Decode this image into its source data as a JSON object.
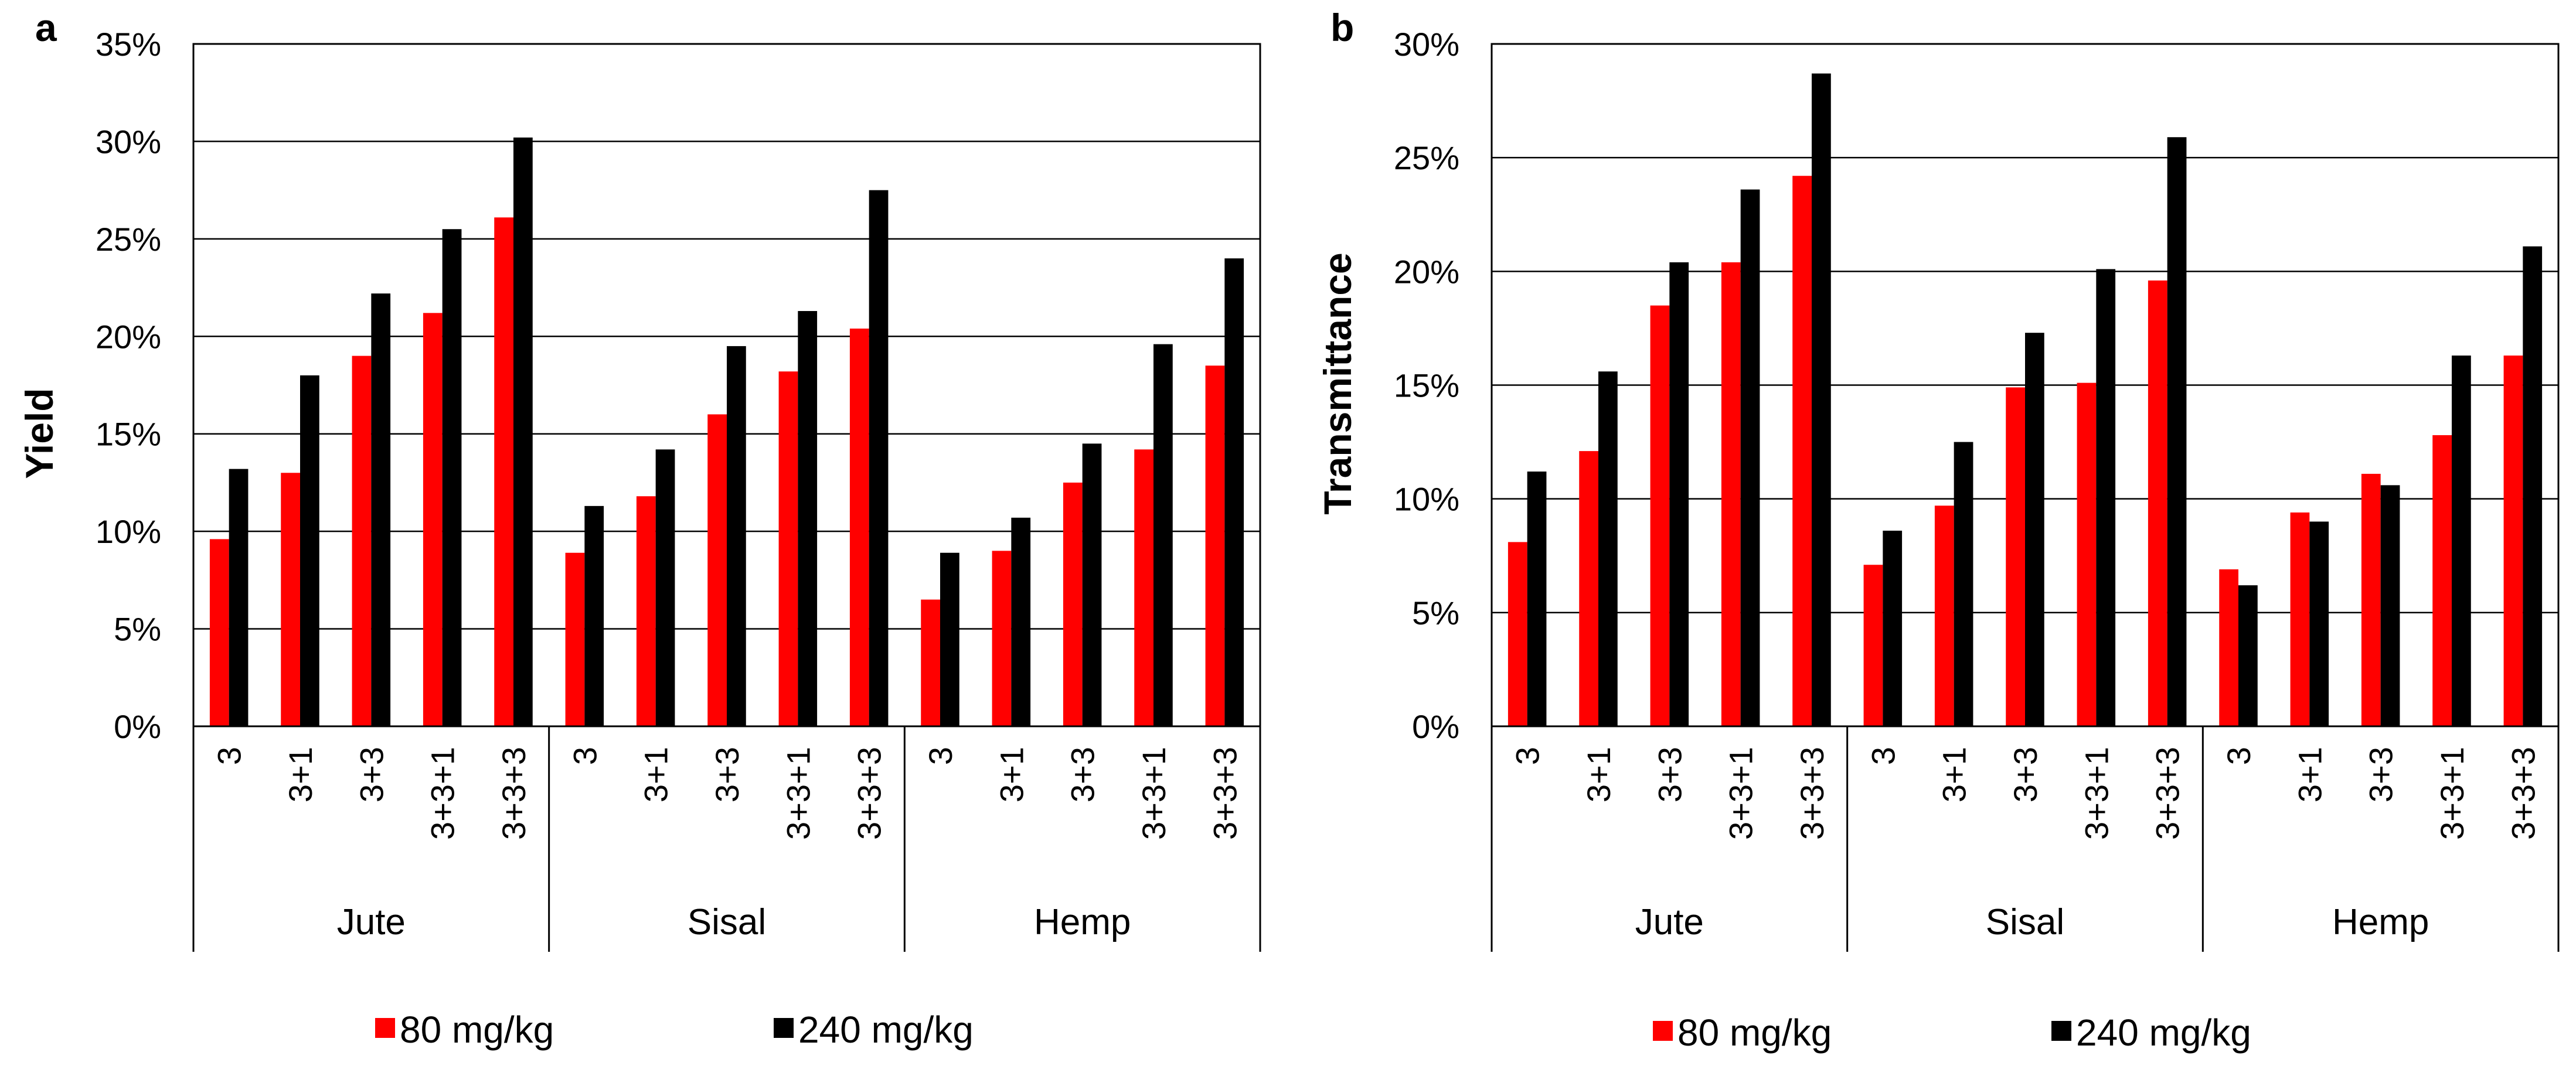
{
  "chart_data": [
    {
      "type": "bar",
      "panel_label": "a",
      "ylabel": "Yield",
      "xlabel": "",
      "ylim": [
        0,
        35
      ],
      "yticks": [
        "0%",
        "5%",
        "10%",
        "15%",
        "20%",
        "25%",
        "30%",
        "35%"
      ],
      "groups": [
        "Jute",
        "Sisal",
        "Hemp"
      ],
      "categories": [
        "3",
        "3+1",
        "3+3",
        "3+3+1",
        "3+3+3"
      ],
      "grid": "horizontal",
      "legend": "bottom",
      "series": [
        {
          "name": "80 mg/kg",
          "color": "#ff0000",
          "values": [
            [
              9.6,
              13.0,
              19.0,
              21.2,
              26.1
            ],
            [
              8.9,
              11.8,
              16.0,
              18.2,
              20.4
            ],
            [
              6.5,
              9.0,
              12.5,
              14.2,
              18.5
            ]
          ]
        },
        {
          "name": "240 mg/kg",
          "color": "#000000",
          "values": [
            [
              13.2,
              18.0,
              22.2,
              25.5,
              30.2
            ],
            [
              11.3,
              14.2,
              19.5,
              21.3,
              27.5
            ],
            [
              8.9,
              10.7,
              14.5,
              19.6,
              24.0
            ]
          ]
        }
      ]
    },
    {
      "type": "bar",
      "panel_label": "b",
      "ylabel": "Transmittance",
      "xlabel": "",
      "ylim": [
        0,
        30
      ],
      "yticks": [
        "0%",
        "5%",
        "10%",
        "15%",
        "20%",
        "25%",
        "30%"
      ],
      "groups": [
        "Jute",
        "Sisal",
        "Hemp"
      ],
      "categories": [
        "3",
        "3+1",
        "3+3",
        "3+3+1",
        "3+3+3"
      ],
      "grid": "horizontal",
      "legend": "bottom",
      "series": [
        {
          "name": "80 mg/kg",
          "color": "#ff0000",
          "values": [
            [
              8.1,
              12.1,
              18.5,
              20.4,
              24.2
            ],
            [
              7.1,
              9.7,
              14.9,
              15.1,
              19.6
            ],
            [
              6.9,
              9.4,
              11.1,
              12.8,
              16.3
            ]
          ]
        },
        {
          "name": "240 mg/kg",
          "color": "#000000",
          "values": [
            [
              11.2,
              15.6,
              20.4,
              23.6,
              28.7
            ],
            [
              8.6,
              12.5,
              17.3,
              20.1,
              25.9
            ],
            [
              6.2,
              9.0,
              10.6,
              16.3,
              21.1
            ]
          ]
        }
      ]
    }
  ]
}
